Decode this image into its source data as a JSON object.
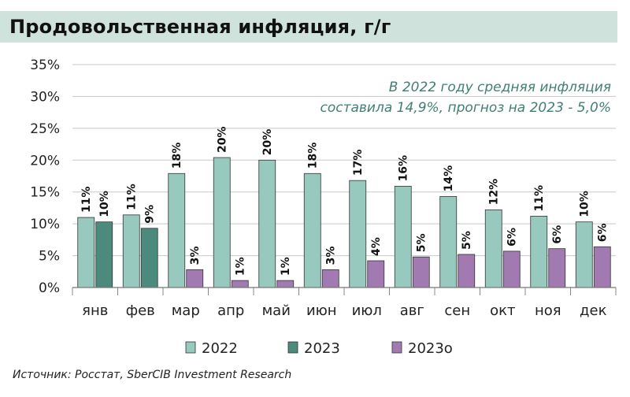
{
  "header": {
    "title": "Продовольственная инфляция, г/г"
  },
  "annotation": {
    "line1": "В 2022 году средняя инфляция",
    "line2": "составила 14,9%, прогноз на 2023 - 5,0%"
  },
  "source": "Источник: Росстат, SberCIB Investment Research",
  "chart_data": {
    "type": "bar",
    "categories": [
      "янв",
      "фев",
      "мар",
      "апр",
      "май",
      "июн",
      "июл",
      "авг",
      "сен",
      "окт",
      "ноя",
      "дек"
    ],
    "ylim": [
      0,
      35
    ],
    "yticks": [
      0,
      5,
      10,
      15,
      20,
      25,
      30,
      35
    ],
    "ytick_labels": [
      "0%",
      "5%",
      "10%",
      "15%",
      "20%",
      "25%",
      "30%",
      "35%"
    ],
    "grid": true,
    "legend_position": "bottom",
    "series": [
      {
        "name": "2022",
        "color": "#97c9bf",
        "values": [
          11.0,
          11.4,
          17.9,
          20.4,
          20.0,
          17.9,
          16.8,
          15.9,
          14.3,
          12.2,
          11.2,
          10.3
        ],
        "labels": [
          "11%",
          "11%",
          "18%",
          "20%",
          "20%",
          "18%",
          "17%",
          "16%",
          "14%",
          "12%",
          "11%",
          "10%"
        ]
      },
      {
        "name": "2023",
        "color": "#4d8a7e",
        "values": [
          10.3,
          9.3,
          null,
          null,
          null,
          null,
          null,
          null,
          null,
          null,
          null,
          null
        ],
        "labels": [
          "10%",
          "9%",
          "",
          "",
          "",
          "",
          "",
          "",
          "",
          "",
          "",
          ""
        ]
      },
      {
        "name": "2023о",
        "color": "#a17ab1",
        "values": [
          null,
          null,
          2.8,
          1.1,
          1.1,
          2.8,
          4.2,
          4.8,
          5.2,
          5.7,
          6.1,
          6.4
        ],
        "labels": [
          "",
          "",
          "3%",
          "1%",
          "1%",
          "3%",
          "4%",
          "5%",
          "5%",
          "6%",
          "6%",
          "6%"
        ]
      }
    ]
  }
}
